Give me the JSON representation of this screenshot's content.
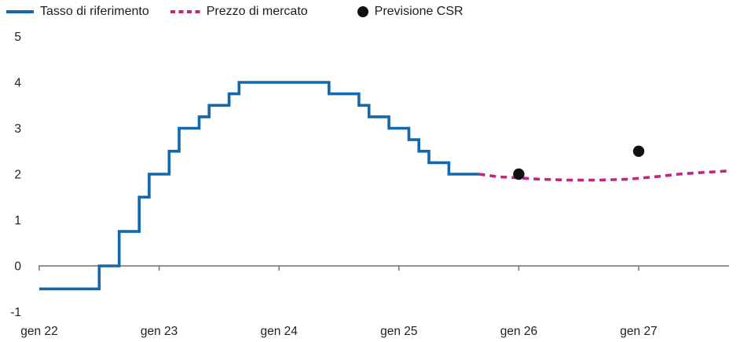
{
  "legend": {
    "items": [
      {
        "label": "Tasso di riferimento",
        "marker": "solid-line",
        "color": "#1368ab"
      },
      {
        "label": "Prezzo di mercato",
        "marker": "dashed-line",
        "color": "#c0267c"
      },
      {
        "label": "Previsione CSR",
        "marker": "dot",
        "color": "#111111"
      }
    ]
  },
  "chart_data": {
    "type": "line",
    "title": "",
    "xlabel": "",
    "ylabel": "",
    "grid": false,
    "legend_position": "top-left",
    "ylim": [
      -1,
      5
    ],
    "y_ticks": [
      -1,
      0,
      1,
      2,
      3,
      4,
      5
    ],
    "x_range": [
      "2022-01",
      "2027-10"
    ],
    "x_tick_positions": [
      "2022-01",
      "2023-01",
      "2024-01",
      "2025-01",
      "2026-01",
      "2027-01"
    ],
    "x_tick_labels": [
      "gen 22",
      "gen 23",
      "gen 24",
      "gen 25",
      "gen 26",
      "gen 27"
    ],
    "axis_color": "#6f6f6f",
    "text_color": "#222222",
    "series": [
      {
        "name": "Tasso di riferimento",
        "style": "step",
        "color": "#1368ab",
        "points": [
          [
            "2022-01",
            -0.5
          ],
          [
            "2022-07",
            0.0
          ],
          [
            "2022-09",
            0.75
          ],
          [
            "2022-11",
            1.5
          ],
          [
            "2022-12",
            2.0
          ],
          [
            "2023-02",
            2.5
          ],
          [
            "2023-03",
            3.0
          ],
          [
            "2023-05",
            3.25
          ],
          [
            "2023-06",
            3.5
          ],
          [
            "2023-08",
            3.75
          ],
          [
            "2023-09",
            4.0
          ],
          [
            "2024-06",
            3.75
          ],
          [
            "2024-09",
            3.5
          ],
          [
            "2024-10",
            3.25
          ],
          [
            "2024-12",
            3.0
          ],
          [
            "2025-02",
            2.75
          ],
          [
            "2025-03",
            2.5
          ],
          [
            "2025-04",
            2.25
          ],
          [
            "2025-06",
            2.0
          ],
          [
            "2025-09",
            2.0
          ]
        ]
      },
      {
        "name": "Prezzo di mercato",
        "style": "dashed",
        "color": "#c0267c",
        "points": [
          [
            "2025-09",
            2.0
          ],
          [
            "2025-11",
            1.94
          ],
          [
            "2026-01",
            1.92
          ],
          [
            "2026-03",
            1.89
          ],
          [
            "2026-06",
            1.87
          ],
          [
            "2026-09",
            1.87
          ],
          [
            "2026-12",
            1.89
          ],
          [
            "2027-01",
            1.91
          ],
          [
            "2027-03",
            1.95
          ],
          [
            "2027-05",
            2.0
          ],
          [
            "2027-07",
            2.03
          ],
          [
            "2027-10",
            2.07
          ]
        ]
      },
      {
        "name": "Previsione CSR",
        "style": "scatter",
        "color": "#111111",
        "points": [
          [
            "2026-01",
            2.0
          ],
          [
            "2027-01",
            2.5
          ]
        ]
      }
    ]
  }
}
